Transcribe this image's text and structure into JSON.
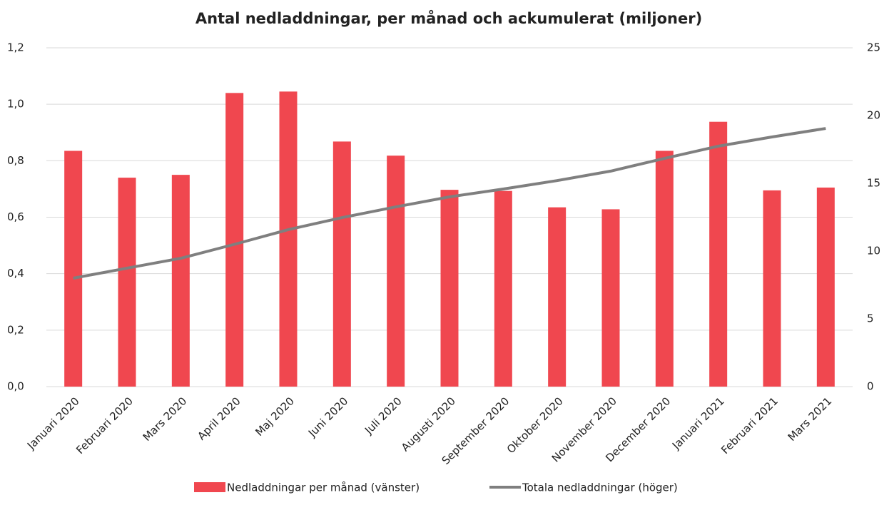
{
  "chart_data": {
    "type": "bar_line",
    "title": "Antal nedladdningar, per månad och ackumulerat (miljoner)",
    "categories": [
      "Januari 2020",
      "Februari 2020",
      "Mars 2020",
      "April 2020",
      "Maj 2020",
      "Juni 2020",
      "Juli 2020",
      "Augusti 2020",
      "September 2020",
      "Oktober 2020",
      "November 2020",
      "December 2020",
      "Januari 2021",
      "Februari 2021",
      "Mars 2021"
    ],
    "series": [
      {
        "name": "Nedladdningar per månad (vänster)",
        "type": "bar",
        "color": "#f0474f",
        "values": [
          0.835,
          0.74,
          0.75,
          1.04,
          1.045,
          0.868,
          0.818,
          0.697,
          0.693,
          0.635,
          0.628,
          0.835,
          0.938,
          0.695,
          0.705
        ]
      },
      {
        "name": "Totala nedladdningar (höger)",
        "type": "line",
        "color": "#7f7f7f",
        "axis": "y2",
        "values": [
          8.0,
          8.74,
          9.47,
          10.5,
          11.58,
          12.47,
          13.26,
          14.0,
          14.58,
          15.2,
          15.9,
          16.84,
          17.74,
          18.42,
          19.05
        ]
      }
    ],
    "ylim": [
      0,
      1.2
    ],
    "yticks": [
      {
        "value": 0,
        "label": "0,0"
      },
      {
        "value": 0.2,
        "label": "0,2"
      },
      {
        "value": 0.4,
        "label": "0,4"
      },
      {
        "value": 0.6,
        "label": "0,6"
      },
      {
        "value": 0.8,
        "label": "0,8"
      },
      {
        "value": 1.0,
        "label": "1,0"
      },
      {
        "value": 1.2,
        "label": "1,2"
      }
    ],
    "y2lim": [
      0,
      25
    ],
    "y2ticks": [
      0,
      5,
      10,
      15,
      20,
      25
    ],
    "grid": true,
    "legend": "bottom"
  }
}
